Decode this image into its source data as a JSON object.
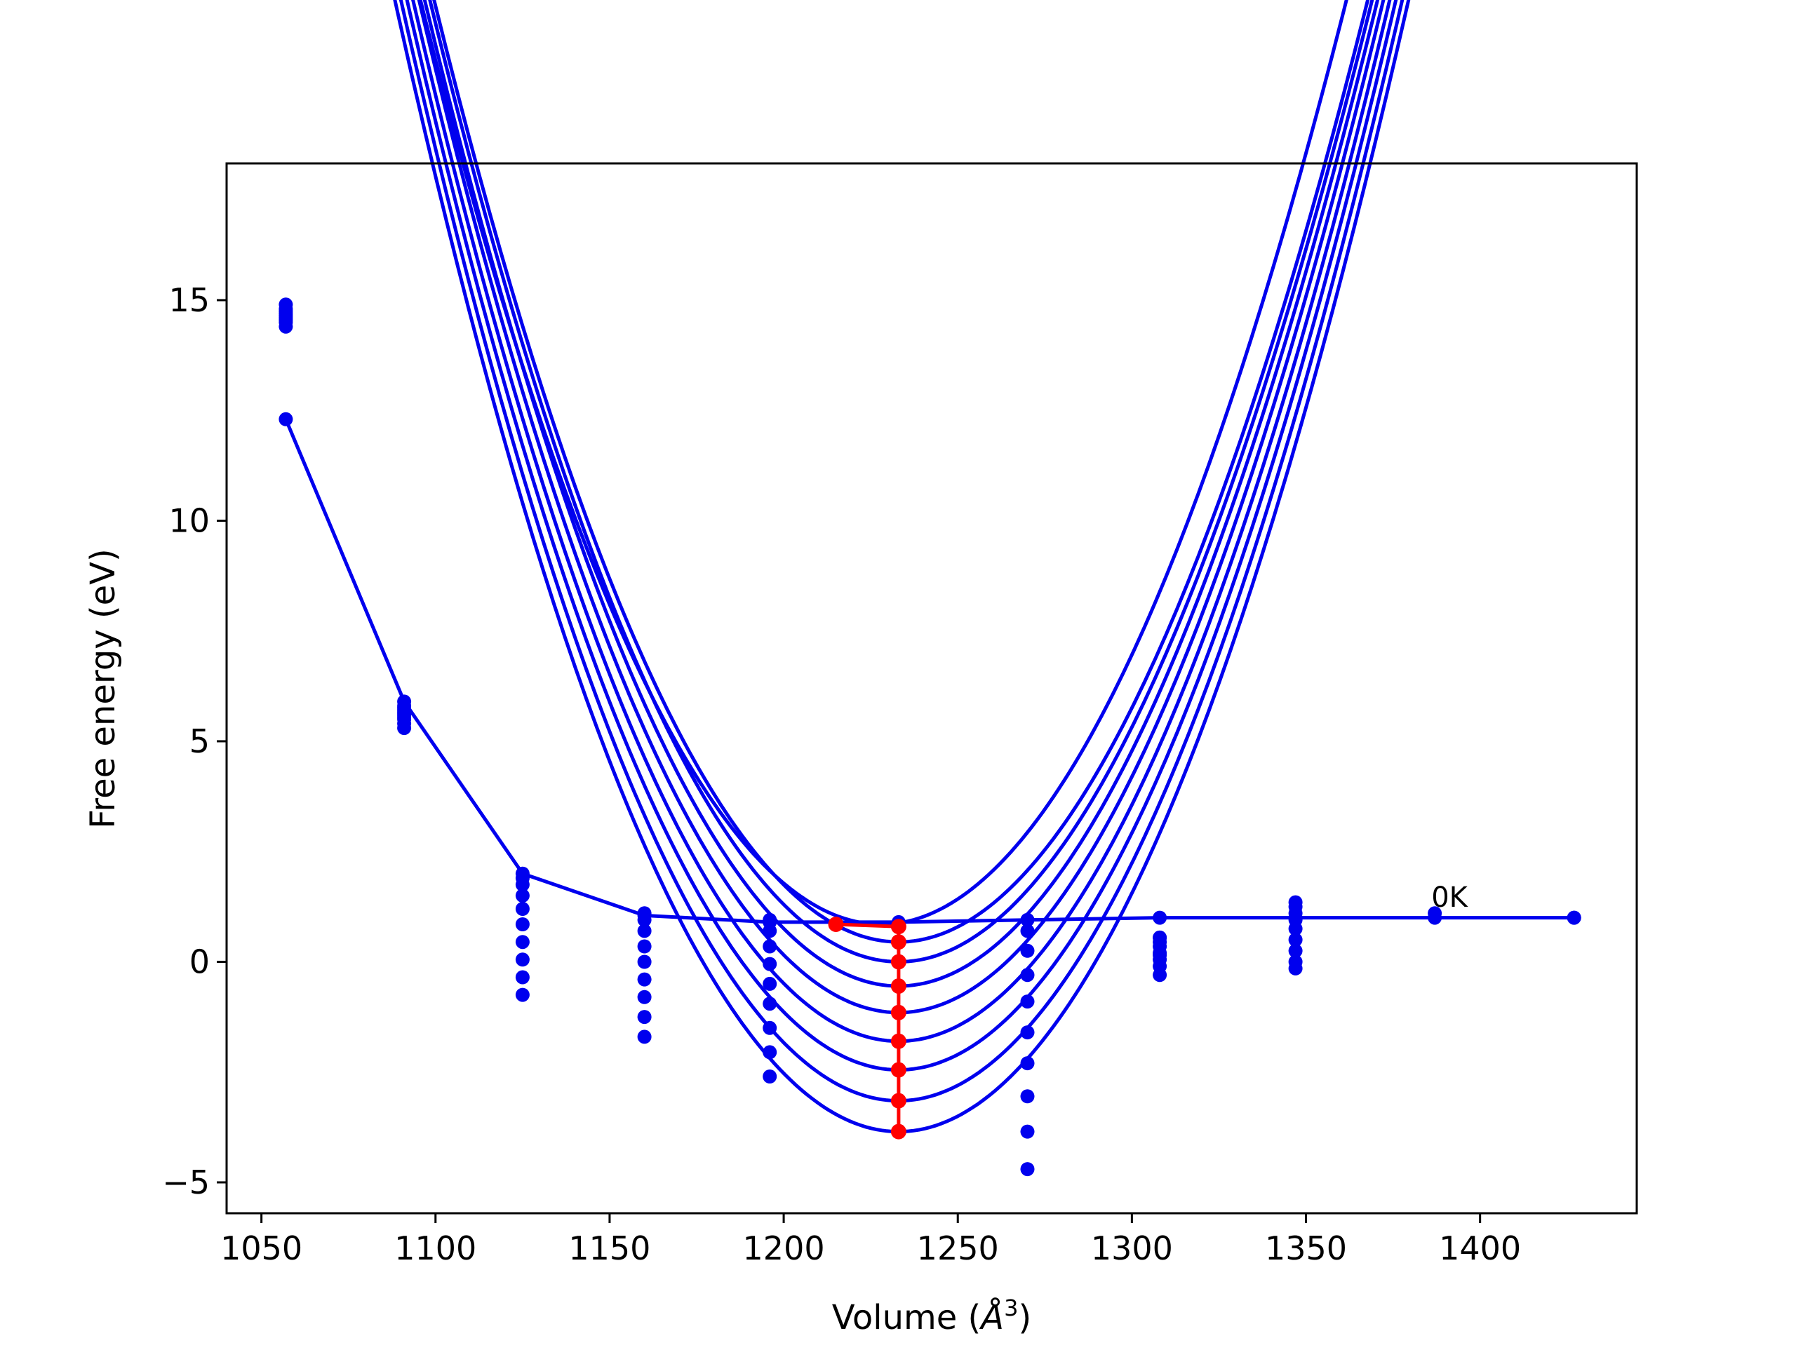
{
  "chart_data": {
    "type": "line",
    "title": "",
    "xlabel": "Volume ($\\AA^3$)",
    "xlabel_main": "Volume (",
    "xlabel_unit": "Å",
    "xlabel_sup": "3",
    "xlabel_close": ")",
    "ylabel": "Free energy (eV)",
    "xlim": [
      1040,
      1445
    ],
    "ylim": [
      -5.7,
      18.1
    ],
    "xticks": [
      1050,
      1100,
      1150,
      1200,
      1250,
      1300,
      1350,
      1400
    ],
    "yticks": [
      -5,
      0,
      5,
      10,
      15
    ],
    "xtick_labels": [
      "1050",
      "1100",
      "1150",
      "1200",
      "1250",
      "1300",
      "1350",
      "1400"
    ],
    "ytick_labels": [
      "−5",
      "0",
      "5",
      "10",
      "15"
    ],
    "grid": false,
    "colors": {
      "curves": "#0000ee",
      "equilibrium": "#ff0000"
    },
    "volumes": [
      1057,
      1091,
      1125,
      1160,
      1196,
      1233,
      1270,
      1308,
      1347,
      1387,
      1427
    ],
    "fit_range": [
      1057,
      1427
    ],
    "series": [
      {
        "points": [
          [
            1057,
            14.4
          ],
          [
            1091,
            5.3
          ],
          [
            1125,
            -0.75
          ],
          [
            1160,
            -1.7
          ],
          [
            1196,
            -2.6
          ],
          [
            1233,
            -3.85
          ],
          [
            1270,
            -4.7
          ],
          [
            1308,
            0.55
          ],
          [
            1347,
            1.35
          ],
          [
            1387,
            1.1
          ],
          [
            1427,
            1.0
          ]
        ],
        "curve": {
          "v0": 1233,
          "e0": -3.85,
          "a": 0.001211,
          "b": 1.02e-07
        }
      },
      {
        "points": [
          [
            1057,
            14.5
          ],
          [
            1091,
            5.4
          ],
          [
            1125,
            -0.35
          ],
          [
            1160,
            -1.25
          ],
          [
            1196,
            -2.05
          ],
          [
            1233,
            -3.15
          ],
          [
            1270,
            -3.85
          ],
          [
            1308,
            0.45
          ],
          [
            1347,
            1.25
          ]
        ],
        "curve": {
          "v0": 1233,
          "e0": -3.15,
          "a": 0.001207,
          "b": 1e-07
        }
      },
      {
        "points": [
          [
            1057,
            14.55
          ],
          [
            1091,
            5.5
          ],
          [
            1125,
            0.05
          ],
          [
            1160,
            -0.8
          ],
          [
            1196,
            -1.5
          ],
          [
            1233,
            -2.45
          ],
          [
            1270,
            -3.05
          ],
          [
            1308,
            0.35
          ],
          [
            1347,
            1.1
          ]
        ],
        "curve": {
          "v0": 1233,
          "e0": -2.45,
          "a": 0.001203,
          "b": 9.8e-08
        }
      },
      {
        "points": [
          [
            1057,
            14.6
          ],
          [
            1091,
            5.55
          ],
          [
            1125,
            0.45
          ],
          [
            1160,
            -0.4
          ],
          [
            1196,
            -0.95
          ],
          [
            1233,
            -1.8
          ],
          [
            1270,
            -2.3
          ],
          [
            1308,
            0.2
          ],
          [
            1347,
            0.95
          ]
        ],
        "curve": {
          "v0": 1233,
          "e0": -1.8,
          "a": 0.0012,
          "b": 9.6e-08
        }
      },
      {
        "points": [
          [
            1057,
            14.65
          ],
          [
            1091,
            5.6
          ],
          [
            1125,
            0.85
          ],
          [
            1160,
            0.0
          ],
          [
            1196,
            -0.5
          ],
          [
            1233,
            -1.15
          ],
          [
            1270,
            -1.6
          ],
          [
            1308,
            0.05
          ],
          [
            1347,
            0.75
          ]
        ],
        "curve": {
          "v0": 1233,
          "e0": -1.15,
          "a": 0.001197,
          "b": 9.4e-08
        }
      },
      {
        "points": [
          [
            1057,
            14.7
          ],
          [
            1091,
            5.65
          ],
          [
            1125,
            1.2
          ],
          [
            1160,
            0.35
          ],
          [
            1196,
            -0.05
          ],
          [
            1233,
            -0.55
          ],
          [
            1270,
            -0.9
          ],
          [
            1308,
            -0.1
          ],
          [
            1347,
            0.5
          ]
        ],
        "curve": {
          "v0": 1233,
          "e0": -0.55,
          "a": 0.001194,
          "b": 9.2e-08
        }
      },
      {
        "points": [
          [
            1057,
            14.75
          ],
          [
            1091,
            5.7
          ],
          [
            1125,
            1.5
          ],
          [
            1160,
            0.7
          ],
          [
            1196,
            0.35
          ],
          [
            1233,
            0.0
          ],
          [
            1270,
            -0.3
          ],
          [
            1308,
            -0.3
          ],
          [
            1347,
            0.25
          ]
        ],
        "curve": {
          "v0": 1233,
          "e0": 0.0,
          "a": 0.001191,
          "b": 9e-08
        }
      },
      {
        "points": [
          [
            1057,
            14.8
          ],
          [
            1091,
            5.75
          ],
          [
            1125,
            1.75
          ],
          [
            1160,
            0.95
          ],
          [
            1196,
            0.7
          ],
          [
            1233,
            0.45
          ],
          [
            1270,
            0.25
          ],
          [
            1308,
            0.15
          ],
          [
            1347,
            0.0
          ]
        ],
        "curve": {
          "v0": 1233,
          "e0": 0.45,
          "a": 0.001188,
          "b": 8.8e-08
        }
      },
      {
        "points": [
          [
            1057,
            14.9
          ],
          [
            1091,
            5.8
          ],
          [
            1125,
            1.9
          ],
          [
            1160,
            1.1
          ],
          [
            1196,
            0.95
          ],
          [
            1233,
            0.8
          ],
          [
            1270,
            0.7
          ],
          [
            1308,
            0.55
          ],
          [
            1347,
            -0.15
          ]
        ],
        "curve": {
          "v0": 1228,
          "e0": 0.85,
          "a": 0.001185,
          "b": 8.6e-08
        }
      }
    ],
    "zero_k_line": {
      "points": [
        [
          1057,
          12.3
        ],
        [
          1091,
          5.9
        ],
        [
          1125,
          2.0
        ],
        [
          1160,
          1.05
        ],
        [
          1196,
          0.9
        ],
        [
          1233,
          0.9
        ],
        [
          1270,
          0.95
        ],
        [
          1308,
          1.0
        ],
        [
          1347,
          1.0
        ],
        [
          1387,
          1.0
        ],
        [
          1427,
          1.0
        ]
      ],
      "label": "0K",
      "label_at": [
        1386,
        1.25
      ]
    },
    "equilibrium_path": {
      "color": "#ff0000",
      "points": [
        [
          1233,
          -3.85
        ],
        [
          1233,
          -3.15
        ],
        [
          1233,
          -2.45
        ],
        [
          1233,
          -1.8
        ],
        [
          1233,
          -1.15
        ],
        [
          1233,
          -0.55
        ],
        [
          1233,
          0.0
        ],
        [
          1233,
          0.45
        ],
        [
          1233,
          0.8
        ],
        [
          1215,
          0.85
        ]
      ]
    }
  }
}
